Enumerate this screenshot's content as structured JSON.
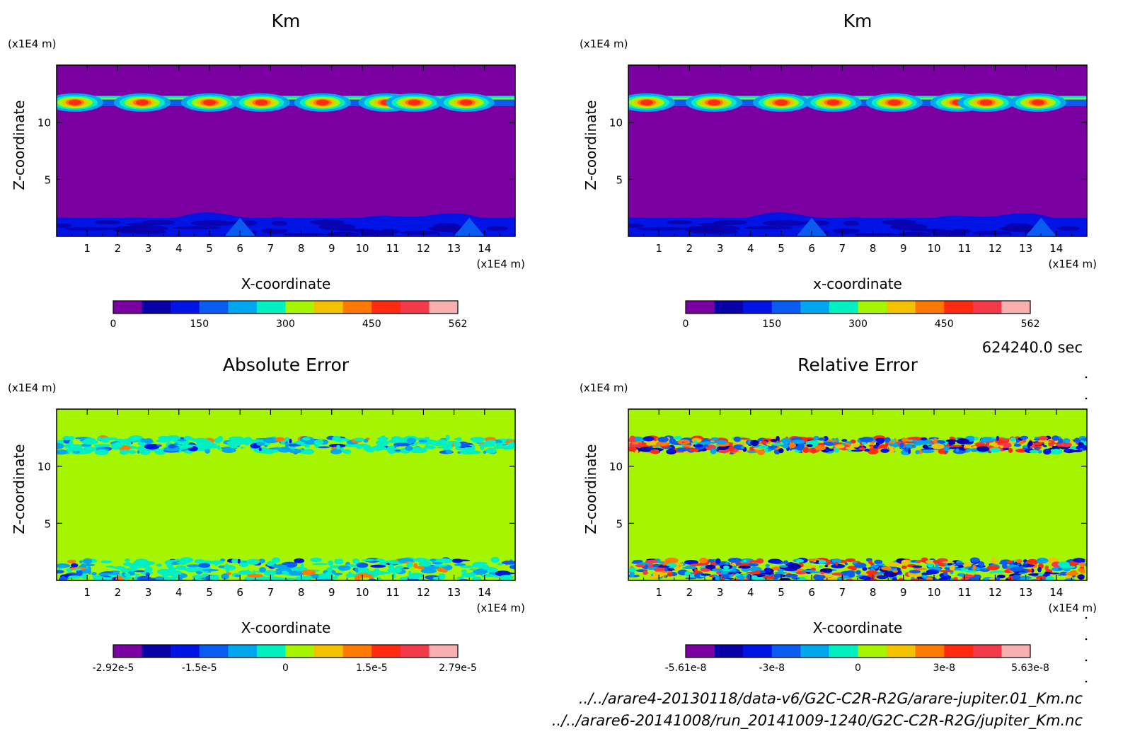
{
  "colors": {
    "palette": [
      "#7a00a2",
      "#0a00a8",
      "#0014e6",
      "#0a5cf0",
      "#00a6ee",
      "#00f0c2",
      "#a6f500",
      "#f2c200",
      "#ff7800",
      "#ff2a10",
      "#f23a4a",
      "#f6b0b0"
    ],
    "background": "#ffffff",
    "frame": "#000000"
  },
  "time_label": "624240.0 sec",
  "file_labels": [
    "../../arare4-20130118/data-v6/G2C-C2R-R2G/arare-jupiter.01_Km.nc",
    "../../arare6-20141008/run_20141009-1240/G2C-C2R-R2G/jupiter_Km.nc"
  ],
  "chart_data": [
    {
      "type": "heatmap",
      "title": "Km",
      "xlabel": "X-coordinate",
      "ylabel": "Z-coordinate",
      "x_unit": "(x1E4 m)",
      "y_unit": "(x1E4 m)",
      "xlim": [
        0,
        15
      ],
      "ylim": [
        0,
        15
      ],
      "x_ticks": [
        "1",
        "2",
        "3",
        "4",
        "5",
        "6",
        "7",
        "8",
        "9",
        "10",
        "11",
        "12",
        "13",
        "14"
      ],
      "y_ticks": [
        "5",
        "10"
      ],
      "background_level": 0,
      "colorbar": {
        "ticks": [
          "0",
          "150",
          "300",
          "450",
          "562"
        ]
      },
      "features": [
        {
          "type": "upper_plumes",
          "z_range": [
            11.4,
            12.3
          ],
          "amplitude": "high",
          "centers_x": [
            0.6,
            2.8,
            5.0,
            6.7,
            8.7,
            10.8,
            11.7,
            13.4
          ]
        },
        {
          "type": "lower_layer",
          "z_range": [
            0,
            2.0
          ],
          "amplitude": "low"
        }
      ]
    },
    {
      "type": "heatmap",
      "title": "Km",
      "xlabel": "x-coordinate",
      "ylabel": "Z-coordinate",
      "x_unit": "(x1E4 m)",
      "y_unit": "(x1E4 m)",
      "xlim": [
        0,
        15
      ],
      "ylim": [
        0,
        15
      ],
      "x_ticks": [
        "1",
        "2",
        "3",
        "4",
        "5",
        "6",
        "7",
        "8",
        "9",
        "10",
        "11",
        "12",
        "13",
        "14"
      ],
      "y_ticks": [
        "5",
        "10"
      ],
      "background_level": 0,
      "colorbar": {
        "ticks": [
          "0",
          "150",
          "300",
          "450",
          "562"
        ]
      },
      "features": [
        {
          "type": "upper_plumes",
          "z_range": [
            11.4,
            12.3
          ],
          "amplitude": "high",
          "centers_x": [
            0.6,
            2.8,
            5.0,
            6.7,
            8.7,
            10.8,
            11.7,
            13.4
          ]
        },
        {
          "type": "lower_layer",
          "z_range": [
            0,
            2.0
          ],
          "amplitude": "low"
        }
      ]
    },
    {
      "type": "heatmap",
      "title": "Absolute Error",
      "xlabel": "X-coordinate",
      "ylabel": "Z-coordinate",
      "x_unit": "(x1E4 m)",
      "y_unit": "(x1E4 m)",
      "xlim": [
        0,
        15
      ],
      "ylim": [
        0,
        15
      ],
      "x_ticks": [
        "1",
        "2",
        "3",
        "4",
        "5",
        "6",
        "7",
        "8",
        "9",
        "10",
        "11",
        "12",
        "13",
        "14"
      ],
      "y_ticks": [
        "5",
        "10"
      ],
      "background_level": 6,
      "colorbar": {
        "ticks": [
          "-2.92e-5",
          "-1.5e-5",
          "0",
          "1.5e-5",
          "2.79e-5"
        ]
      },
      "features": [
        {
          "type": "noise_band",
          "z_range": [
            11.2,
            12.5
          ],
          "amplitude": "mostly_low"
        },
        {
          "type": "noise_band",
          "z_range": [
            0,
            1.8
          ],
          "amplitude": "mostly_low"
        }
      ]
    },
    {
      "type": "heatmap",
      "title": "Relative Error",
      "xlabel": "X-coordinate",
      "ylabel": "Z-coordinate",
      "x_unit": "(x1E4 m)",
      "y_unit": "(x1E4 m)",
      "xlim": [
        0,
        15
      ],
      "ylim": [
        0,
        15
      ],
      "x_ticks": [
        "1",
        "2",
        "3",
        "4",
        "5",
        "6",
        "7",
        "8",
        "9",
        "10",
        "11",
        "12",
        "13",
        "14"
      ],
      "y_ticks": [
        "5",
        "10"
      ],
      "background_level": 6,
      "colorbar": {
        "ticks": [
          "-5.61e-8",
          "-3e-8",
          "0",
          "3e-8",
          "5.63e-8"
        ]
      },
      "features": [
        {
          "type": "noise_band",
          "z_range": [
            11.2,
            12.5
          ],
          "amplitude": "mixed"
        },
        {
          "type": "noise_band",
          "z_range": [
            0,
            1.8
          ],
          "amplitude": "mixed"
        }
      ]
    }
  ]
}
